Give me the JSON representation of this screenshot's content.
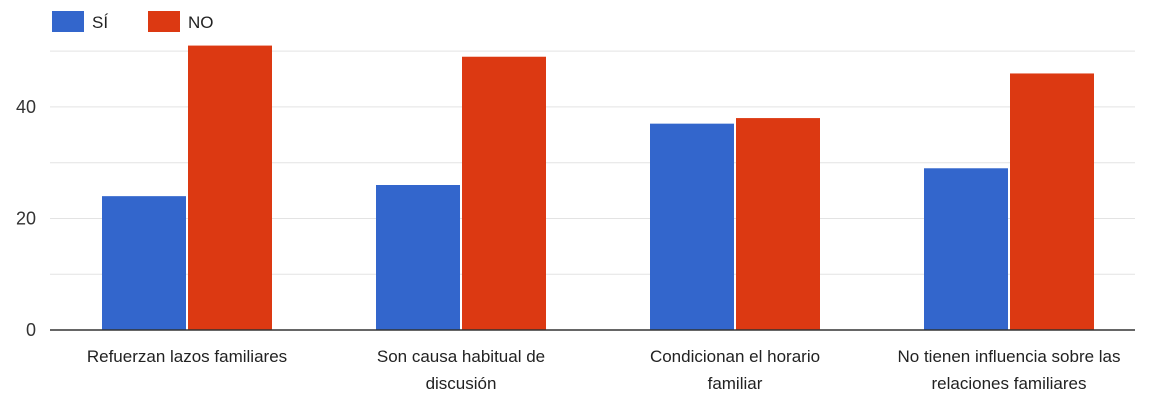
{
  "chart_data": {
    "type": "bar",
    "categories": [
      [
        "Refuerzan lazos familiares"
      ],
      [
        "Son causa habitual de",
        "discusión"
      ],
      [
        "Condicionan el horario",
        "familiar"
      ],
      [
        "No tienen influencia sobre las",
        "relaciones familiares"
      ]
    ],
    "series": [
      {
        "name": "SÍ",
        "color": "#3366cc",
        "values": [
          24,
          26,
          37,
          29
        ]
      },
      {
        "name": "NO",
        "color": "#dc3912",
        "values": [
          51,
          49,
          38,
          46
        ]
      }
    ],
    "yticks": [
      0,
      20,
      40
    ],
    "ylim": [
      0,
      52
    ],
    "grid": true,
    "legend": "top-left"
  }
}
